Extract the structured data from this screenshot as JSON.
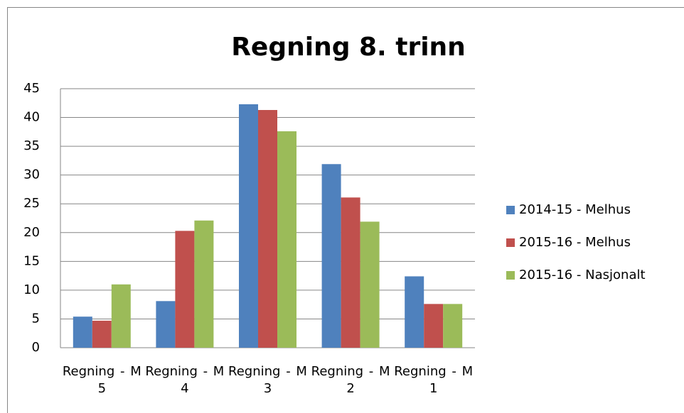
{
  "chart_data": {
    "type": "bar",
    "title": "Regning 8. trinn",
    "categories": [
      "Regning - M 5",
      "Regning - M 4",
      "Regning - M 3",
      "Regning - M 2",
      "Regning - M 1"
    ],
    "series": [
      {
        "name": "2014-15 - Melhus",
        "color": "#4f81bd",
        "values": [
          5.4,
          8.1,
          42.3,
          31.9,
          12.4
        ]
      },
      {
        "name": "2015-16 - Melhus",
        "color": "#c0504d",
        "values": [
          4.7,
          20.3,
          41.3,
          26.1,
          7.6
        ]
      },
      {
        "name": "2015-16 - Nasjonalt",
        "color": "#9bbb59",
        "values": [
          11.0,
          22.1,
          37.6,
          21.9,
          7.6
        ]
      }
    ],
    "ylim": [
      0,
      45
    ],
    "yticks": [
      0,
      5,
      10,
      15,
      20,
      25,
      30,
      35,
      40,
      45
    ],
    "grid": true,
    "legend": "right"
  }
}
